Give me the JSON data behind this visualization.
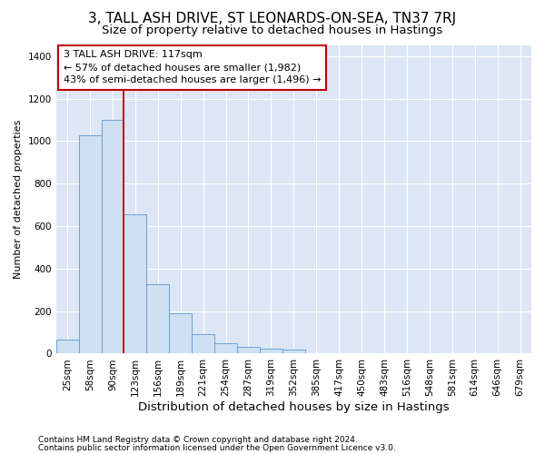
{
  "title": "3, TALL ASH DRIVE, ST LEONARDS-ON-SEA, TN37 7RJ",
  "subtitle": "Size of property relative to detached houses in Hastings",
  "xlabel": "Distribution of detached houses by size in Hastings",
  "ylabel": "Number of detached properties",
  "footnote1": "Contains HM Land Registry data © Crown copyright and database right 2024.",
  "footnote2": "Contains public sector information licensed under the Open Government Licence v3.0.",
  "categories": [
    "25sqm",
    "58sqm",
    "90sqm",
    "123sqm",
    "156sqm",
    "189sqm",
    "221sqm",
    "254sqm",
    "287sqm",
    "319sqm",
    "352sqm",
    "385sqm",
    "417sqm",
    "450sqm",
    "483sqm",
    "516sqm",
    "548sqm",
    "581sqm",
    "614sqm",
    "646sqm",
    "679sqm"
  ],
  "values": [
    65,
    1025,
    1100,
    655,
    325,
    190,
    90,
    50,
    30,
    25,
    20,
    0,
    0,
    0,
    0,
    0,
    0,
    0,
    0,
    0,
    0
  ],
  "bar_color": "#cfe0f3",
  "bar_edge_color": "#5b9bd5",
  "vline_x_idx": 3,
  "vline_color": "#c00000",
  "annotation_line1": "3 TALL ASH DRIVE: 117sqm",
  "annotation_line2": "← 57% of detached houses are smaller (1,982)",
  "annotation_line3": "43% of semi-detached houses are larger (1,496) →",
  "annotation_box_color": "#ffffff",
  "annotation_box_edge": "#c00000",
  "ylim": [
    0,
    1450
  ],
  "yticks": [
    0,
    200,
    400,
    600,
    800,
    1000,
    1200,
    1400
  ],
  "plot_bg_color": "#dce6f5",
  "title_fontsize": 11,
  "subtitle_fontsize": 9.5,
  "xlabel_fontsize": 9.5,
  "ylabel_fontsize": 8,
  "tick_fontsize": 7.5,
  "annot_fontsize": 8,
  "footnote_fontsize": 6.5
}
